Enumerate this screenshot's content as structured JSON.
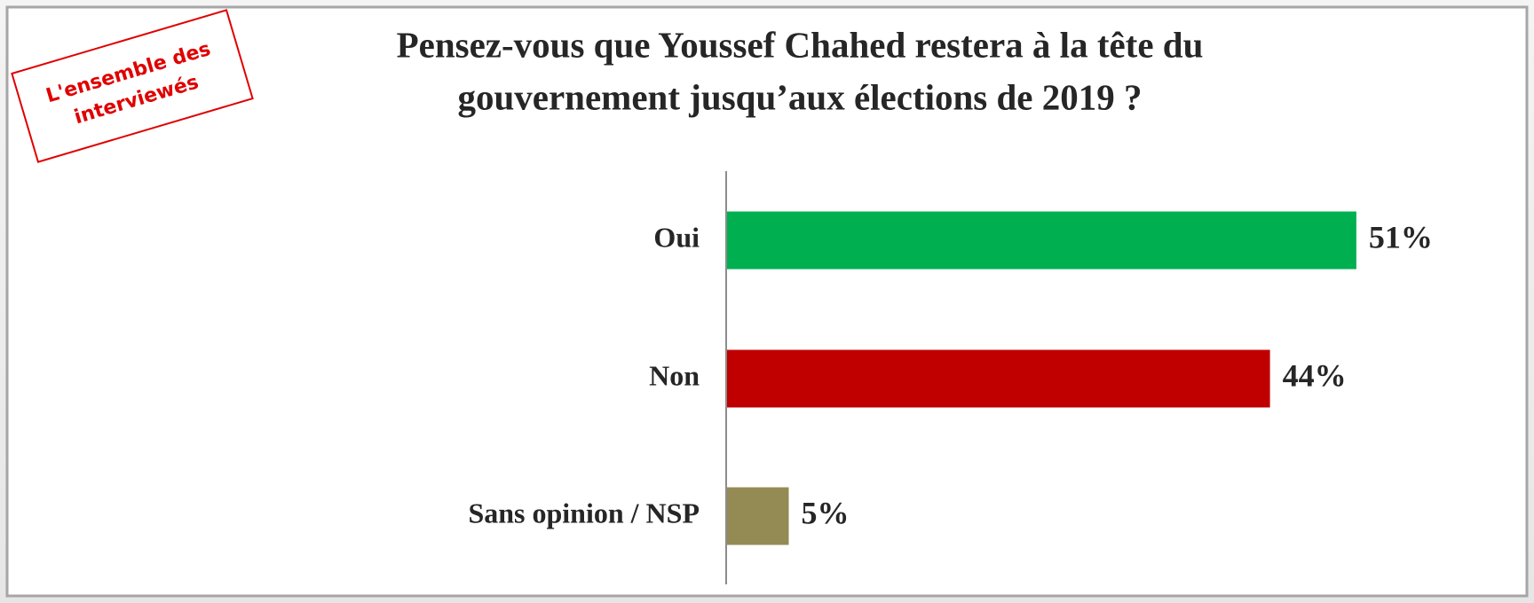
{
  "chart_data": {
    "type": "hbar",
    "title": [
      "Pensez-vous que Youssef Chahed restera à la tête du",
      "gouvernement jusqu’aux élections de 2019 ?"
    ],
    "annotation": [
      "L'ensemble des",
      "interviewés"
    ],
    "categories": [
      "Oui",
      "Non",
      "Sans opinion / NSP"
    ],
    "values": [
      51,
      44,
      5
    ],
    "value_labels": [
      "51%",
      "44%",
      "5%"
    ],
    "colors": [
      "#00b050",
      "#c00000",
      "#948a54"
    ]
  }
}
